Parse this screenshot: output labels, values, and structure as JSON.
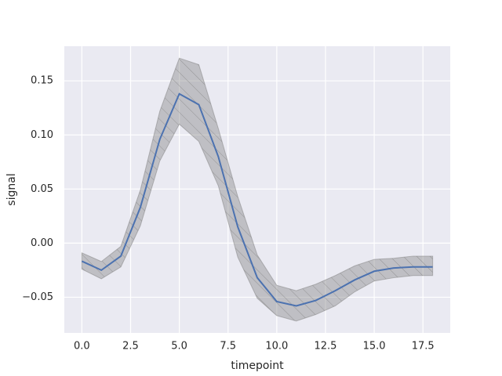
{
  "chart_data": {
    "type": "line",
    "x_label": "timepoint",
    "y_label": "signal",
    "x": [
      0,
      1,
      2,
      3,
      4,
      5,
      6,
      7,
      8,
      9,
      10,
      11,
      12,
      13,
      14,
      15,
      16,
      17,
      18
    ],
    "series": [
      {
        "color": "#4c72b0",
        "values": [
          -0.0167,
          -0.025,
          -0.012,
          0.033,
          0.096,
          0.138,
          0.128,
          0.08,
          0.015,
          -0.032,
          -0.054,
          -0.058,
          -0.053,
          -0.044,
          -0.034,
          -0.026,
          -0.023,
          -0.022,
          -0.022
        ],
        "band_upper": [
          -0.009,
          -0.017,
          -0.003,
          0.049,
          0.122,
          0.171,
          0.165,
          0.106,
          0.043,
          -0.011,
          -0.039,
          -0.044,
          -0.038,
          -0.03,
          -0.021,
          -0.015,
          -0.014,
          -0.012,
          -0.012
        ],
        "band_lower": [
          -0.024,
          -0.033,
          -0.022,
          0.016,
          0.076,
          0.11,
          0.094,
          0.053,
          -0.013,
          -0.051,
          -0.067,
          -0.072,
          -0.066,
          -0.058,
          -0.045,
          -0.035,
          -0.032,
          -0.03,
          -0.03
        ],
        "band_color": "#808080"
      }
    ],
    "xlim": [
      -0.9,
      18.9
    ],
    "ylim": [
      -0.083,
      0.182
    ],
    "xticks": [
      {
        "value": 0,
        "label": "0.0"
      },
      {
        "value": 2.5,
        "label": "2.5"
      },
      {
        "value": 5,
        "label": "5.0"
      },
      {
        "value": 7.5,
        "label": "7.5"
      },
      {
        "value": 10,
        "label": "10.0"
      },
      {
        "value": 12.5,
        "label": "12.5"
      },
      {
        "value": 15,
        "label": "15.0"
      },
      {
        "value": 17.5,
        "label": "17.5"
      }
    ],
    "yticks": [
      {
        "value": -0.05,
        "label": "−0.05"
      },
      {
        "value": 0,
        "label": "0.00"
      },
      0.05,
      {
        "value": 0.1,
        "label": "0.10"
      },
      0.15
    ],
    "grid": true
  }
}
